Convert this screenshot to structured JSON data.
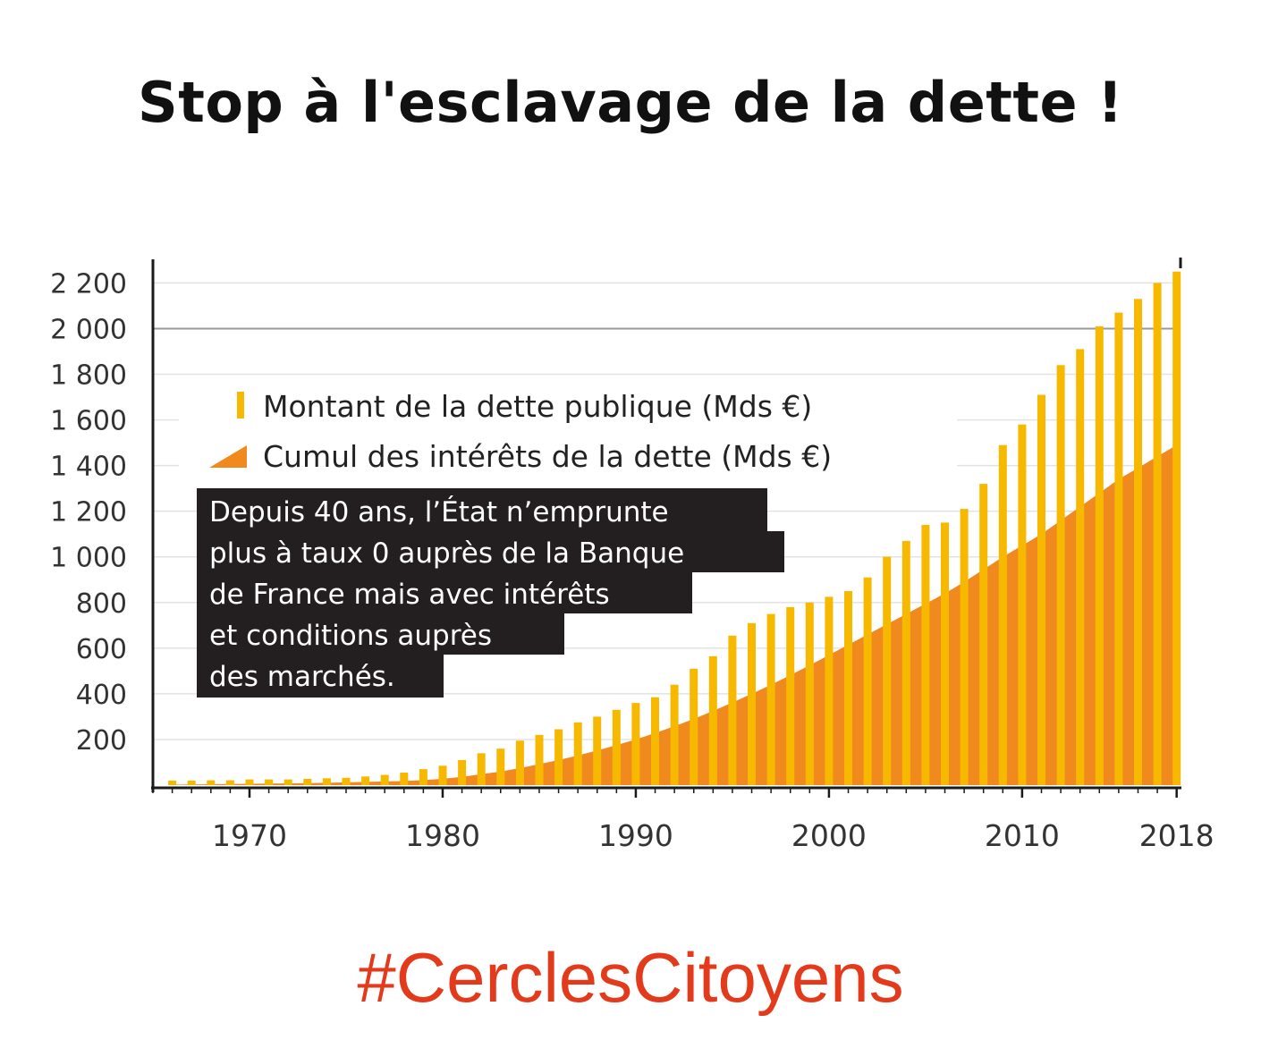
{
  "headline": "Stop à l'esclavage de la dette !",
  "hashtag": "#CerclesCitoyens",
  "colors": {
    "debt_bar": "#f7b900",
    "interest_area": "#f08a1e",
    "annotation_bg": "#231f20",
    "annotation_text": "#ffffff",
    "hashtag": "#e43a1c",
    "axis": "#1a1a1a",
    "grid": "#e3e3e3",
    "grid_major": "#9a9a9a"
  },
  "chart_data": {
    "type": "bar",
    "title": "",
    "xlabel": "",
    "ylabel": "",
    "ylim": [
      0,
      2280
    ],
    "xlim": [
      1965,
      2018.2
    ],
    "ytick_values": [
      200,
      400,
      600,
      800,
      1000,
      1200,
      1400,
      1600,
      1800,
      2000,
      2200
    ],
    "ytick_labels": [
      "200",
      "400",
      "600",
      "800",
      "1 000",
      "1 200",
      "1 400",
      "1 600",
      "1 800",
      "2 000",
      "2 200"
    ],
    "xtick_values": [
      1970,
      1980,
      1990,
      2000,
      2010,
      2018
    ],
    "xtick_labels": [
      "1970",
      "1980",
      "1990",
      "2000",
      "2010",
      "2018"
    ],
    "major_gridline": 2000,
    "annotation": {
      "lines": [
        "Depuis 40 ans, l’État n’emprunte",
        "plus à taux 0 auprès de la Banque",
        "de France mais avec intérêts",
        "et conditions auprès",
        "des marchés."
      ]
    },
    "legend": {
      "position": "top-left",
      "entries": [
        {
          "label": "Montant de la dette publique (Mds €)",
          "marker": "bar"
        },
        {
          "label": "Cumul des intérêts de la dette (Mds €)",
          "marker": "area"
        }
      ]
    },
    "years": [
      1966,
      1967,
      1968,
      1969,
      1970,
      1971,
      1972,
      1973,
      1974,
      1975,
      1976,
      1977,
      1978,
      1979,
      1980,
      1981,
      1982,
      1983,
      1984,
      1985,
      1986,
      1987,
      1988,
      1989,
      1990,
      1991,
      1992,
      1993,
      1994,
      1995,
      1996,
      1997,
      1998,
      1999,
      2000,
      2001,
      2002,
      2003,
      2004,
      2005,
      2006,
      2007,
      2008,
      2009,
      2010,
      2011,
      2012,
      2013,
      2014,
      2015,
      2016,
      2017,
      2018
    ],
    "series": [
      {
        "name": "Montant de la dette publique (Mds €)",
        "type": "bar",
        "values": [
          20,
          20,
          21,
          21,
          25,
          25,
          25,
          28,
          30,
          32,
          38,
          45,
          55,
          70,
          85,
          110,
          140,
          160,
          195,
          220,
          245,
          275,
          300,
          330,
          360,
          385,
          440,
          510,
          565,
          655,
          710,
          750,
          780,
          800,
          825,
          850,
          910,
          1000,
          1070,
          1140,
          1150,
          1210,
          1320,
          1490,
          1580,
          1710,
          1840,
          1910,
          2010,
          2070,
          2130,
          2200,
          2250
        ]
      },
      {
        "name": "Cumul des intérêts de la dette (Mds €)",
        "type": "area",
        "values": [
          2,
          3,
          4,
          5,
          6,
          7,
          8,
          9,
          10,
          12,
          14,
          16,
          18,
          22,
          28,
          36,
          48,
          60,
          75,
          92,
          110,
          130,
          152,
          175,
          200,
          228,
          258,
          290,
          325,
          362,
          400,
          440,
          482,
          525,
          570,
          615,
          660,
          705,
          750,
          795,
          840,
          890,
          945,
          1000,
          1050,
          1100,
          1160,
          1220,
          1280,
          1340,
          1390,
          1440,
          1490
        ]
      }
    ]
  }
}
